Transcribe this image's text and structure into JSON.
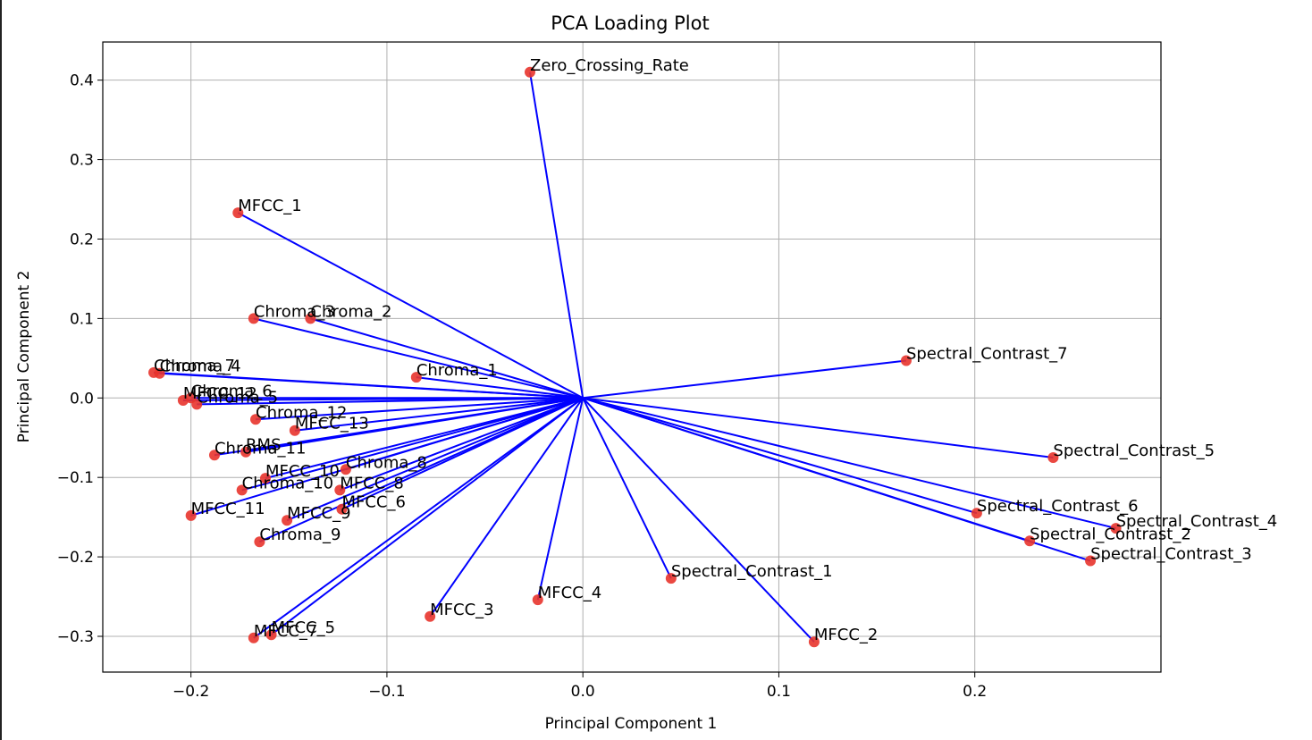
{
  "chart_data": {
    "type": "scatter",
    "title": "PCA Loading Plot",
    "xlabel": "Principal Component 1",
    "ylabel": "Principal Component 2",
    "xlim": [
      -0.245,
      0.295
    ],
    "ylim": [
      -0.345,
      0.448
    ],
    "xticks": [
      -0.2,
      -0.1,
      0.0,
      0.1,
      0.2
    ],
    "xtick_labels": [
      "−0.2",
      "−0.1",
      "0.0",
      "0.1",
      "0.2"
    ],
    "yticks": [
      -0.3,
      -0.2,
      -0.1,
      0.0,
      0.1,
      0.2,
      0.3,
      0.4
    ],
    "ytick_labels": [
      "−0.3",
      "−0.2",
      "−0.1",
      "0.0",
      "0.1",
      "0.2",
      "0.3",
      "0.4"
    ],
    "grid": true,
    "line_color": "#0000ff",
    "point_color": "#e8342c",
    "points": [
      {
        "label": "Zero_Crossing_Rate",
        "x": -0.027,
        "y": 0.41
      },
      {
        "label": "MFCC_1",
        "x": -0.176,
        "y": 0.233
      },
      {
        "label": "Chroma_3",
        "x": -0.168,
        "y": 0.1
      },
      {
        "label": "Chroma_2",
        "x": -0.139,
        "y": 0.1
      },
      {
        "label": "Spectral_Contrast_7",
        "x": 0.165,
        "y": 0.047
      },
      {
        "label": "Chroma_1",
        "x": -0.085,
        "y": 0.026
      },
      {
        "label": "Chroma_7",
        "x": -0.219,
        "y": 0.032
      },
      {
        "label": "Chroma_4",
        "x": -0.216,
        "y": 0.031
      },
      {
        "label": "Chroma_6",
        "x": -0.2,
        "y": 0.0
      },
      {
        "label": "MFCC_12",
        "x": -0.204,
        "y": -0.003
      },
      {
        "label": "Chroma_5",
        "x": -0.197,
        "y": -0.008
      },
      {
        "label": "Chroma_12",
        "x": -0.167,
        "y": -0.027
      },
      {
        "label": "MFCC_13",
        "x": -0.147,
        "y": -0.041
      },
      {
        "label": "Chroma_11",
        "x": -0.188,
        "y": -0.072
      },
      {
        "label": "RMS",
        "x": -0.172,
        "y": -0.068
      },
      {
        "label": "Spectral_Contrast_5",
        "x": 0.24,
        "y": -0.075
      },
      {
        "label": "Chroma_8",
        "x": -0.121,
        "y": -0.09
      },
      {
        "label": "MFCC_10",
        "x": -0.162,
        "y": -0.101
      },
      {
        "label": "Chroma_10",
        "x": -0.174,
        "y": -0.116
      },
      {
        "label": "MFCC_8",
        "x": -0.124,
        "y": -0.116
      },
      {
        "label": "MFCC_6",
        "x": -0.123,
        "y": -0.14
      },
      {
        "label": "MFCC_11",
        "x": -0.2,
        "y": -0.148
      },
      {
        "label": "MFCC_9",
        "x": -0.151,
        "y": -0.154
      },
      {
        "label": "Chroma_9",
        "x": -0.165,
        "y": -0.181
      },
      {
        "label": "Spectral_Contrast_6",
        "x": 0.201,
        "y": -0.145
      },
      {
        "label": "Spectral_Contrast_4",
        "x": 0.272,
        "y": -0.164
      },
      {
        "label": "Spectral_Contrast_2",
        "x": 0.228,
        "y": -0.18
      },
      {
        "label": "Spectral_Contrast_3",
        "x": 0.259,
        "y": -0.205
      },
      {
        "label": "Spectral_Contrast_1",
        "x": 0.045,
        "y": -0.227
      },
      {
        "label": "MFCC_4",
        "x": -0.023,
        "y": -0.254
      },
      {
        "label": "MFCC_3",
        "x": -0.078,
        "y": -0.275
      },
      {
        "label": "MFCC_2",
        "x": 0.118,
        "y": -0.307
      },
      {
        "label": "MFCC_7",
        "x": -0.168,
        "y": -0.302
      },
      {
        "label": "MFCC_5",
        "x": -0.159,
        "y": -0.298
      }
    ]
  }
}
